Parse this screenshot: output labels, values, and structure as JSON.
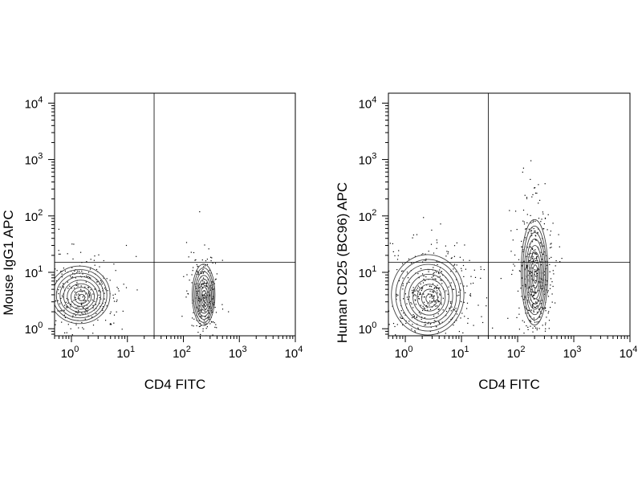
{
  "chart_data": [
    {
      "type": "scatter",
      "subtype": "flow-cytometry density contour plot",
      "xlabel": "CD4 FITC",
      "ylabel": "Mouse IgG1 APC",
      "xscale": "log",
      "yscale": "log",
      "xlim": [
        0.5,
        10000
      ],
      "ylim": [
        0.75,
        15000
      ],
      "x_ticks": [
        {
          "base": "10",
          "exp": "0",
          "value": 1
        },
        {
          "base": "10",
          "exp": "1",
          "value": 10
        },
        {
          "base": "10",
          "exp": "2",
          "value": 100
        },
        {
          "base": "10",
          "exp": "3",
          "value": 1000
        },
        {
          "base": "10",
          "exp": "4",
          "value": 10000
        }
      ],
      "y_ticks": [
        {
          "base": "10",
          "exp": "0",
          "value": 1
        },
        {
          "base": "10",
          "exp": "1",
          "value": 10
        },
        {
          "base": "10",
          "exp": "2",
          "value": 100
        },
        {
          "base": "10",
          "exp": "3",
          "value": 1000
        },
        {
          "base": "10",
          "exp": "4",
          "value": 10000
        }
      ],
      "gates": {
        "x": 30,
        "y": 15
      },
      "grid": false,
      "legend": "none",
      "populations": [
        {
          "x": 1.4,
          "y": 4,
          "spread_x": 0.32,
          "spread_y": 0.3,
          "points": 320
        },
        {
          "x": 230,
          "y": 4,
          "spread_x": 0.12,
          "spread_y": 0.32,
          "points": 260
        }
      ]
    },
    {
      "type": "scatter",
      "subtype": "flow-cytometry density contour plot",
      "xlabel": "CD4 FITC",
      "ylabel": "Human CD25 (BC96) APC",
      "xscale": "log",
      "yscale": "log",
      "xlim": [
        0.5,
        10000
      ],
      "ylim": [
        0.75,
        15000
      ],
      "x_ticks": [
        {
          "base": "10",
          "exp": "0",
          "value": 1
        },
        {
          "base": "10",
          "exp": "1",
          "value": 10
        },
        {
          "base": "10",
          "exp": "2",
          "value": 100
        },
        {
          "base": "10",
          "exp": "3",
          "value": 1000
        },
        {
          "base": "10",
          "exp": "4",
          "value": 10000
        }
      ],
      "y_ticks": [
        {
          "base": "10",
          "exp": "0",
          "value": 1
        },
        {
          "base": "10",
          "exp": "1",
          "value": 10
        },
        {
          "base": "10",
          "exp": "2",
          "value": 100
        },
        {
          "base": "10",
          "exp": "3",
          "value": 1000
        },
        {
          "base": "10",
          "exp": "4",
          "value": 10000
        }
      ],
      "gates": {
        "x": 30,
        "y": 15
      },
      "grid": false,
      "legend": "none",
      "populations": [
        {
          "x": 2.5,
          "y": 4,
          "spread_x": 0.38,
          "spread_y": 0.42,
          "points": 420
        },
        {
          "x": 200,
          "y": 10,
          "spread_x": 0.14,
          "spread_y": 0.55,
          "points": 420
        }
      ]
    }
  ]
}
